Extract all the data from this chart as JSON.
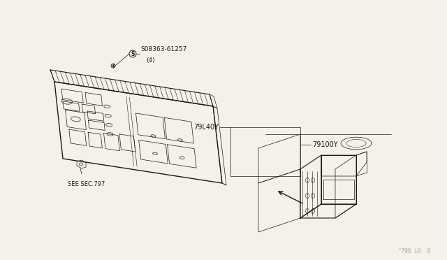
{
  "background_color": "#f5f0e8",
  "line_color": "#1a1a1a",
  "fig_width": 6.4,
  "fig_height": 3.72,
  "dpi": 100,
  "watermark": "^790 i0  0",
  "watermark_color": "#aaaaaa",
  "part_labels": {
    "screw": "S08363-61257",
    "screw2": "(4)",
    "part1": "79L40Y",
    "part2": "79100Y",
    "see_sec": "SEE SEC.797"
  }
}
